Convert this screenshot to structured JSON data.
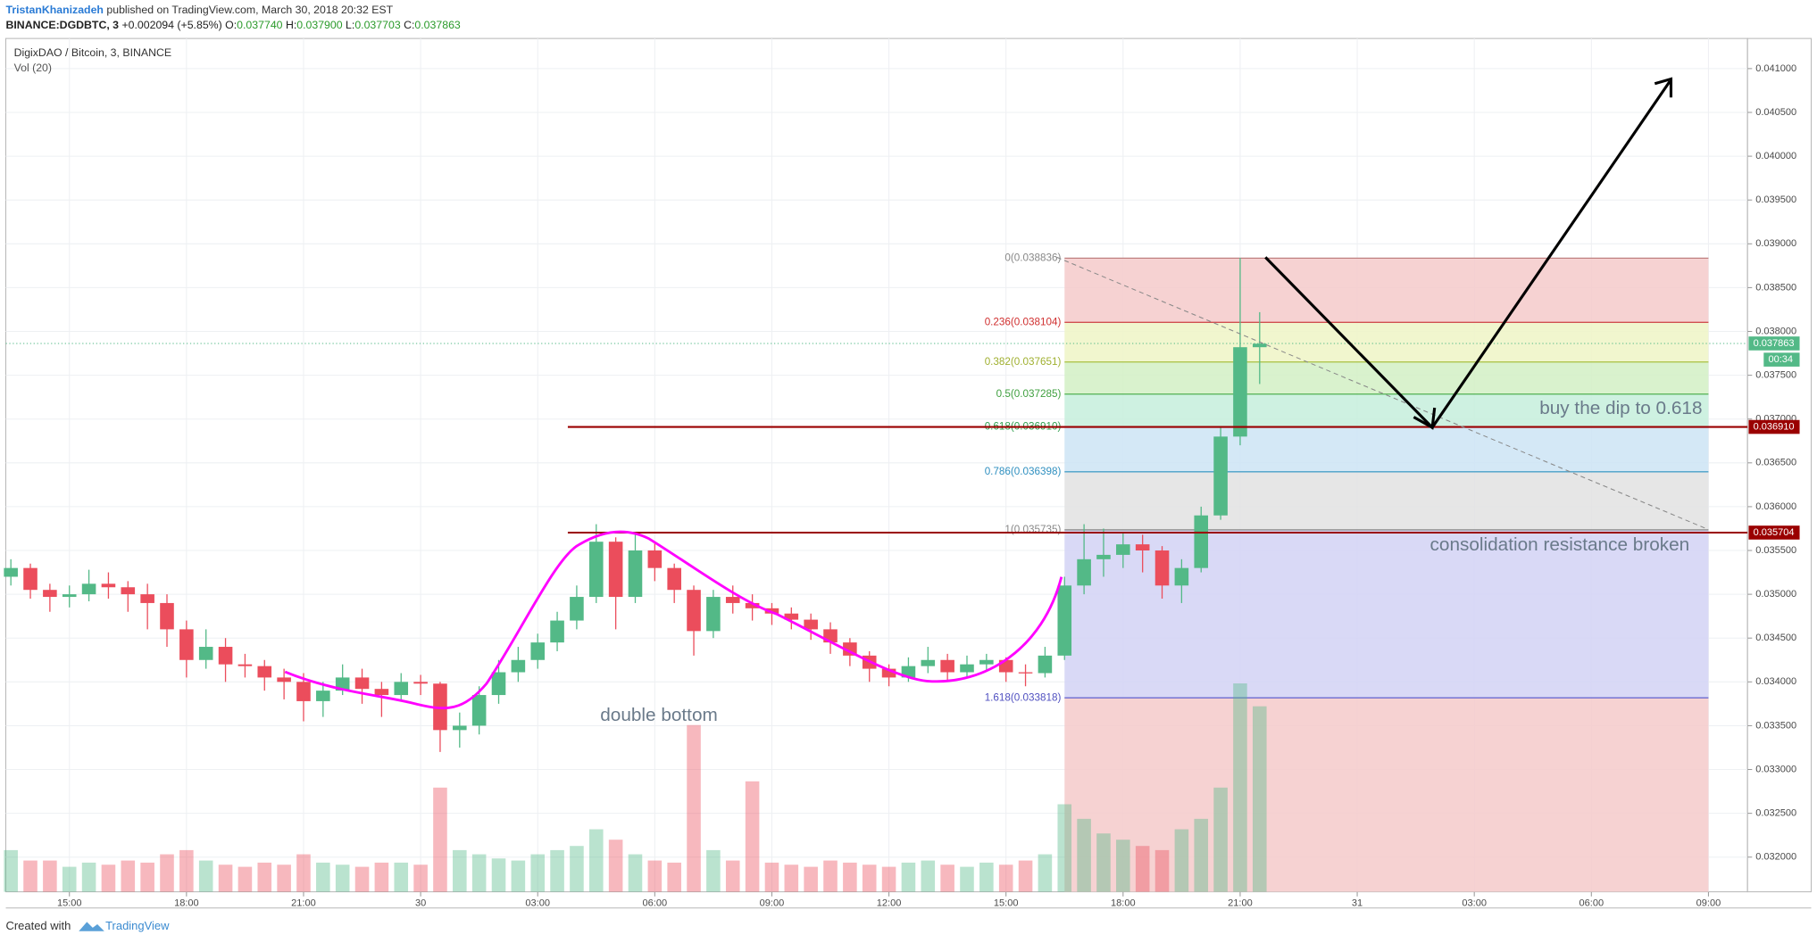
{
  "header": {
    "author": "TristanKhanizadeh",
    "published": "published on TradingView.com, March 30, 2018 20:32 EST",
    "symbol": "BINANCE:DGDBTC, 3",
    "change": "+0.002094 (+5.85%)",
    "o_label": "O:",
    "o": "0.037740",
    "h_label": "H:",
    "h": "0.037900",
    "l_label": "L:",
    "l": "0.037703",
    "c_label": "C:",
    "c": "0.037863"
  },
  "footer": {
    "created": "Created with",
    "brand": "TradingView"
  },
  "chart_data": {
    "type": "candlestick",
    "title": "DigixDAO / Bitcoin, 3, BINANCE",
    "volume_title": "Vol (20)",
    "x": [
      13.5,
      14,
      14.5,
      15,
      15.5,
      16,
      16.5,
      17,
      17.5,
      18,
      18.5,
      19,
      19.5,
      20,
      20.5,
      21,
      21.5,
      22,
      22.5,
      23,
      23.5,
      24,
      24.5,
      25,
      25.5,
      26,
      26.5,
      27,
      27.5,
      28,
      28.5,
      29,
      29.5,
      30,
      30.5,
      31,
      31.5,
      32,
      32.5,
      33,
      33.5,
      34,
      34.5,
      35,
      35.5,
      36,
      36.5,
      37,
      37.5,
      38,
      38.5,
      39,
      39.5,
      40,
      40.5,
      41,
      41.5,
      42,
      42.5,
      43,
      43.5,
      44,
      44.5,
      45,
      45.5
    ],
    "open": [
      0.0352,
      0.0353,
      0.03505,
      0.03497,
      0.035,
      0.03512,
      0.03508,
      0.035,
      0.0349,
      0.0346,
      0.03425,
      0.0344,
      0.0342,
      0.03418,
      0.03405,
      0.034,
      0.03378,
      0.0339,
      0.03405,
      0.03392,
      0.03385,
      0.034,
      0.03398,
      0.03345,
      0.0335,
      0.03385,
      0.03411,
      0.03425,
      0.03445,
      0.0347,
      0.03497,
      0.0356,
      0.03497,
      0.0355,
      0.0353,
      0.03505,
      0.03458,
      0.03497,
      0.0349,
      0.03484,
      0.03478,
      0.03471,
      0.0346,
      0.03445,
      0.0343,
      0.03415,
      0.03405,
      0.03418,
      0.03425,
      0.03411,
      0.0342,
      0.03425,
      0.03411,
      0.0341,
      0.0343,
      0.0351,
      0.0354,
      0.03545,
      0.03557,
      0.0355,
      0.0351,
      0.0353,
      0.0359,
      0.0368,
      0.03782
    ],
    "high": [
      0.0354,
      0.03535,
      0.03512,
      0.0351,
      0.03528,
      0.03525,
      0.03515,
      0.03512,
      0.035,
      0.0347,
      0.0346,
      0.0345,
      0.03432,
      0.03425,
      0.03415,
      0.0341,
      0.034,
      0.0342,
      0.03415,
      0.034,
      0.0341,
      0.03408,
      0.034,
      0.03365,
      0.03395,
      0.03425,
      0.0344,
      0.03455,
      0.0348,
      0.0351,
      0.0358,
      0.03565,
      0.0357,
      0.03558,
      0.03535,
      0.0351,
      0.03505,
      0.0351,
      0.035,
      0.0349,
      0.03485,
      0.03478,
      0.03468,
      0.0345,
      0.03435,
      0.0342,
      0.03428,
      0.0344,
      0.03432,
      0.0343,
      0.03432,
      0.03428,
      0.0342,
      0.0344,
      0.0352,
      0.0358,
      0.03575,
      0.0357,
      0.03568,
      0.03555,
      0.0354,
      0.036,
      0.0369,
      0.03884,
      0.03822
    ],
    "low": [
      0.0351,
      0.03495,
      0.0348,
      0.03485,
      0.03492,
      0.03495,
      0.0348,
      0.0346,
      0.0344,
      0.03405,
      0.03415,
      0.034,
      0.03405,
      0.0339,
      0.0338,
      0.03355,
      0.0336,
      0.03385,
      0.03375,
      0.0336,
      0.03378,
      0.03385,
      0.0332,
      0.03325,
      0.0334,
      0.03375,
      0.034,
      0.03415,
      0.03435,
      0.0346,
      0.0349,
      0.0346,
      0.0349,
      0.03515,
      0.0349,
      0.0343,
      0.0345,
      0.03478,
      0.0347,
      0.03465,
      0.0346,
      0.03448,
      0.03432,
      0.03418,
      0.034,
      0.03395,
      0.034,
      0.0341,
      0.034,
      0.03405,
      0.03412,
      0.034,
      0.03395,
      0.03405,
      0.03425,
      0.035,
      0.0352,
      0.0353,
      0.03525,
      0.03495,
      0.0349,
      0.03525,
      0.03585,
      0.0367,
      0.0374
    ],
    "close": [
      0.0353,
      0.03505,
      0.03497,
      0.035,
      0.03512,
      0.03508,
      0.035,
      0.0349,
      0.0346,
      0.03425,
      0.0344,
      0.0342,
      0.03418,
      0.03405,
      0.034,
      0.03378,
      0.0339,
      0.03405,
      0.03392,
      0.03385,
      0.034,
      0.03398,
      0.03345,
      0.0335,
      0.03385,
      0.03411,
      0.03425,
      0.03445,
      0.0347,
      0.03497,
      0.0356,
      0.03497,
      0.0355,
      0.0353,
      0.03505,
      0.03458,
      0.03497,
      0.0349,
      0.03484,
      0.03478,
      0.03471,
      0.0346,
      0.03445,
      0.0343,
      0.03415,
      0.03405,
      0.03418,
      0.03425,
      0.03411,
      0.0342,
      0.03425,
      0.03411,
      0.0341,
      0.0343,
      0.0351,
      0.0354,
      0.03545,
      0.03557,
      0.0355,
      0.0351,
      0.0353,
      0.0359,
      0.0368,
      0.03782,
      0.03786
    ],
    "volume": [
      20,
      15,
      15,
      12,
      14,
      13,
      15,
      14,
      18,
      20,
      15,
      13,
      12,
      14,
      13,
      18,
      14,
      13,
      12,
      14,
      14,
      13,
      50,
      20,
      18,
      16,
      15,
      18,
      20,
      22,
      30,
      25,
      18,
      15,
      14,
      80,
      20,
      15,
      53,
      14,
      13,
      12,
      15,
      14,
      13,
      12,
      14,
      15,
      13,
      12,
      14,
      13,
      15,
      18,
      42,
      35,
      28,
      25,
      22,
      20,
      30,
      35,
      50,
      100,
      89
    ],
    "vlim": [
      0,
      100
    ],
    "up_color": "#53b987",
    "down_color": "#eb4d5c",
    "xlim": [
      13.37,
      58.0
    ],
    "xticks": [
      {
        "value": 15,
        "label": "15:00"
      },
      {
        "value": 18,
        "label": "18:00"
      },
      {
        "value": 21,
        "label": "21:00"
      },
      {
        "value": 24,
        "label": "30"
      },
      {
        "value": 27,
        "label": "03:00"
      },
      {
        "value": 30,
        "label": "06:00"
      },
      {
        "value": 33,
        "label": "09:00"
      },
      {
        "value": 36,
        "label": "12:00"
      },
      {
        "value": 39,
        "label": "15:00"
      },
      {
        "value": 42,
        "label": "18:00"
      },
      {
        "value": 45,
        "label": "21:00"
      },
      {
        "value": 48,
        "label": "31"
      },
      {
        "value": 51,
        "label": "03:00"
      },
      {
        "value": 54,
        "label": "06:00"
      },
      {
        "value": 57,
        "label": "09:00"
      }
    ],
    "ylim": [
      0.031604,
      0.041344
    ],
    "yticks": [
      {
        "value": 0.032,
        "label": "0.032000"
      },
      {
        "value": 0.0325,
        "label": "0.032500"
      },
      {
        "value": 0.033,
        "label": "0.033000"
      },
      {
        "value": 0.0335,
        "label": "0.033500"
      },
      {
        "value": 0.034,
        "label": "0.034000"
      },
      {
        "value": 0.0345,
        "label": "0.034500"
      },
      {
        "value": 0.035,
        "label": "0.035000"
      },
      {
        "value": 0.0355,
        "label": "0.035500"
      },
      {
        "value": 0.036,
        "label": "0.036000"
      },
      {
        "value": 0.0365,
        "label": "0.036500"
      },
      {
        "value": 0.037,
        "label": "0.037000"
      },
      {
        "value": 0.0375,
        "label": "0.037500"
      },
      {
        "value": 0.038,
        "label": "0.038000"
      },
      {
        "value": 0.0385,
        "label": "0.038500"
      },
      {
        "value": 0.039,
        "label": "0.039000"
      },
      {
        "value": 0.0395,
        "label": "0.039500"
      },
      {
        "value": 0.04,
        "label": "0.040000"
      },
      {
        "value": 0.0405,
        "label": "0.040500"
      },
      {
        "value": 0.041,
        "label": "0.041000"
      }
    ],
    "grid": true,
    "fib": {
      "x": [
        40.5,
        57
      ],
      "levels": [
        {
          "label": "0(0.038836)",
          "value": 0.038836,
          "color": "#c08080",
          "text_color": "#888888",
          "fill": "#f5caca"
        },
        {
          "label": "0.236(0.038104)",
          "value": 0.038104,
          "color": "#d05050",
          "text_color": "#d03030",
          "fill": "#eef4c6"
        },
        {
          "label": "0.382(0.037651)",
          "value": 0.037651,
          "color": "#a8c040",
          "text_color": "#a0b030",
          "fill": "#d2f0c4"
        },
        {
          "label": "0.5(0.037285)",
          "value": 0.037285,
          "color": "#50b050",
          "text_color": "#40a040",
          "fill": "#c6eedc"
        },
        {
          "label": "0.618(0.036910)",
          "value": 0.03691,
          "color": "#40a060",
          "text_color": "#30a050",
          "fill": "#cde4f4"
        },
        {
          "label": "0.786(0.036398)",
          "value": 0.036398,
          "color": "#4aa0c8",
          "text_color": "#3090c0",
          "fill": "#e2e2e2"
        },
        {
          "label": "1(0.035735)",
          "value": 0.035735,
          "color": "#888888",
          "text_color": "#888888",
          "fill": "#d2d2f4"
        },
        {
          "label": "1.618(0.033818)",
          "value": 0.033818,
          "color": "#6a6ad0",
          "text_color": "#5050c0",
          "fill": "#f5caca"
        }
      ]
    },
    "levels": [
      {
        "value": 0.03691,
        "label": "0.036910",
        "color": "#9a0000"
      },
      {
        "value": 0.035704,
        "label": "0.035704",
        "color": "#9a0000"
      }
    ],
    "last_price": {
      "value": 0.037863,
      "label": "0.037863",
      "color": "#53b987"
    },
    "countdown": "00:34",
    "annotations": [
      "buy the dip to 0.618",
      "consolidation resistance broken",
      "double bottom"
    ]
  }
}
